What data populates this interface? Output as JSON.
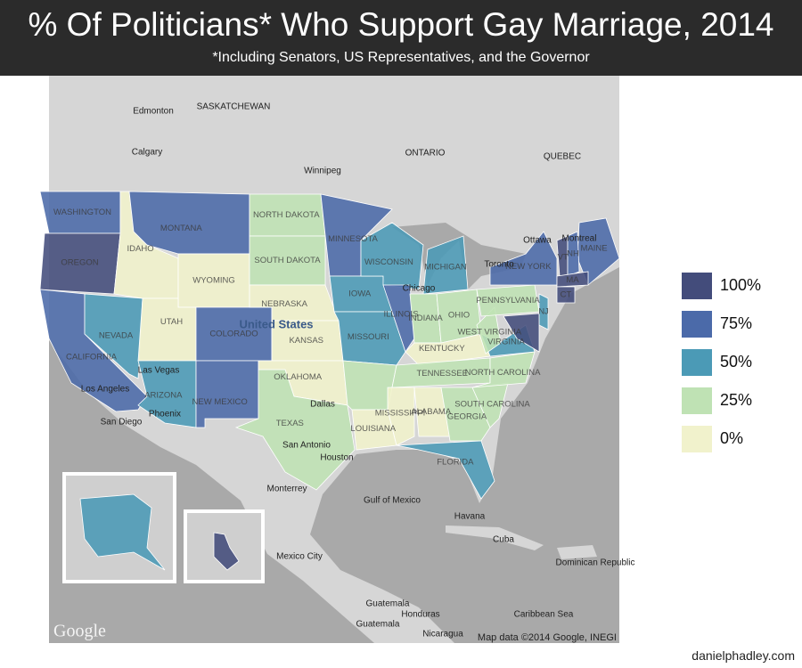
{
  "header": {
    "title": "% Of Politicians* Who Support Gay Marriage, 2014",
    "subtitle": "*Including Senators, US Representatives, and the Governor"
  },
  "legend": {
    "values": [
      100,
      75,
      50,
      25,
      0
    ],
    "labels": [
      "100%",
      "75%",
      "50%",
      "25%",
      "0%"
    ],
    "colors": [
      "#434c7b",
      "#4b6aa9",
      "#4b9ab6",
      "#bfe2b4",
      "#f1f2cc"
    ]
  },
  "states": [
    {
      "label": "WASHINGTON",
      "value": 75
    },
    {
      "label": "OREGON",
      "value": 100
    },
    {
      "label": "CALIFORNIA",
      "value": 75
    },
    {
      "label": "NEVADA",
      "value": 50
    },
    {
      "label": "IDAHO",
      "value": 0
    },
    {
      "label": "MONTANA",
      "value": 75
    },
    {
      "label": "WYOMING",
      "value": 0
    },
    {
      "label": "UTAH",
      "value": 0
    },
    {
      "label": "COLORADO",
      "value": 75
    },
    {
      "label": "ARIZONA",
      "value": 50
    },
    {
      "label": "NEW MEXICO",
      "value": 75
    },
    {
      "label": "NORTH DAKOTA",
      "value": 25
    },
    {
      "label": "SOUTH DAKOTA",
      "value": 25
    },
    {
      "label": "NEBRASKA",
      "value": 0
    },
    {
      "label": "KANSAS",
      "value": 0
    },
    {
      "label": "OKLAHOMA",
      "value": 0
    },
    {
      "label": "TEXAS",
      "value": 25
    },
    {
      "label": "MINNESOTA",
      "value": 75
    },
    {
      "label": "IOWA",
      "value": 50
    },
    {
      "label": "MISSOURI",
      "value": 50
    },
    {
      "label": null,
      "value": 25
    },
    {
      "label": "LOUISIANA",
      "value": 0
    },
    {
      "label": "WISCONSIN",
      "value": 50
    },
    {
      "label": "ILLINOIS",
      "value": 75
    },
    {
      "label": "MICHIGAN",
      "value": 50
    },
    {
      "label": "INDIANA",
      "value": 25
    },
    {
      "label": "OHIO",
      "value": 25
    },
    {
      "label": "KENTUCKY",
      "value": 0
    },
    {
      "label": "TENNESSEE",
      "value": 25
    },
    {
      "label": "MISSISSIPPI",
      "value": 0
    },
    {
      "label": "ALABAMA",
      "value": 0
    },
    {
      "label": "GEORGIA",
      "value": 25
    },
    {
      "label": "FLORIDA",
      "value": 50
    },
    {
      "label": "SOUTH CAROLINA",
      "value": 25
    },
    {
      "label": "NORTH CAROLINA",
      "value": 25
    },
    {
      "label": "VIRGINIA",
      "value": 50
    },
    {
      "label": "WEST VIRGINIA",
      "value": 25
    },
    {
      "label": "PENNSYLVANIA",
      "value": 25
    },
    {
      "label": "NEW YORK",
      "value": 75
    },
    {
      "label": "MAINE",
      "value": 75
    },
    {
      "label": "VT",
      "value": 100
    },
    {
      "label": "NH",
      "value": 75
    },
    {
      "label": "MA",
      "value": 100
    },
    {
      "label": "CT",
      "value": 100
    },
    {
      "label": "NJ",
      "value": 50
    },
    {
      "label": null,
      "value": 100
    },
    {
      "label": null,
      "value": 50
    },
    {
      "label": null,
      "value": 100
    }
  ],
  "places": [
    "Edmonton",
    "SASKATCHEWAN",
    "Calgary",
    "Winnipeg",
    "ONTARIO",
    "QUEBEC",
    "Ottawa",
    "Montreal",
    "Toronto",
    "Chicago",
    "United States",
    "Las Vegas",
    "Los Angeles",
    "San Diego",
    "Phoenix",
    "Dallas",
    "San Antonio",
    "Houston",
    "Monterrey",
    "Gulf of Mexico",
    "Havana",
    "Cuba",
    "Mexico City",
    "Guatemala",
    "Honduras",
    "Guatemala",
    "Nicaragua",
    "Caribbean Sea",
    "Dominican Republic"
  ],
  "logo": "Google",
  "attribution": "Map data ©2014 Google, INEGI",
  "source": "danielphadley.com"
}
